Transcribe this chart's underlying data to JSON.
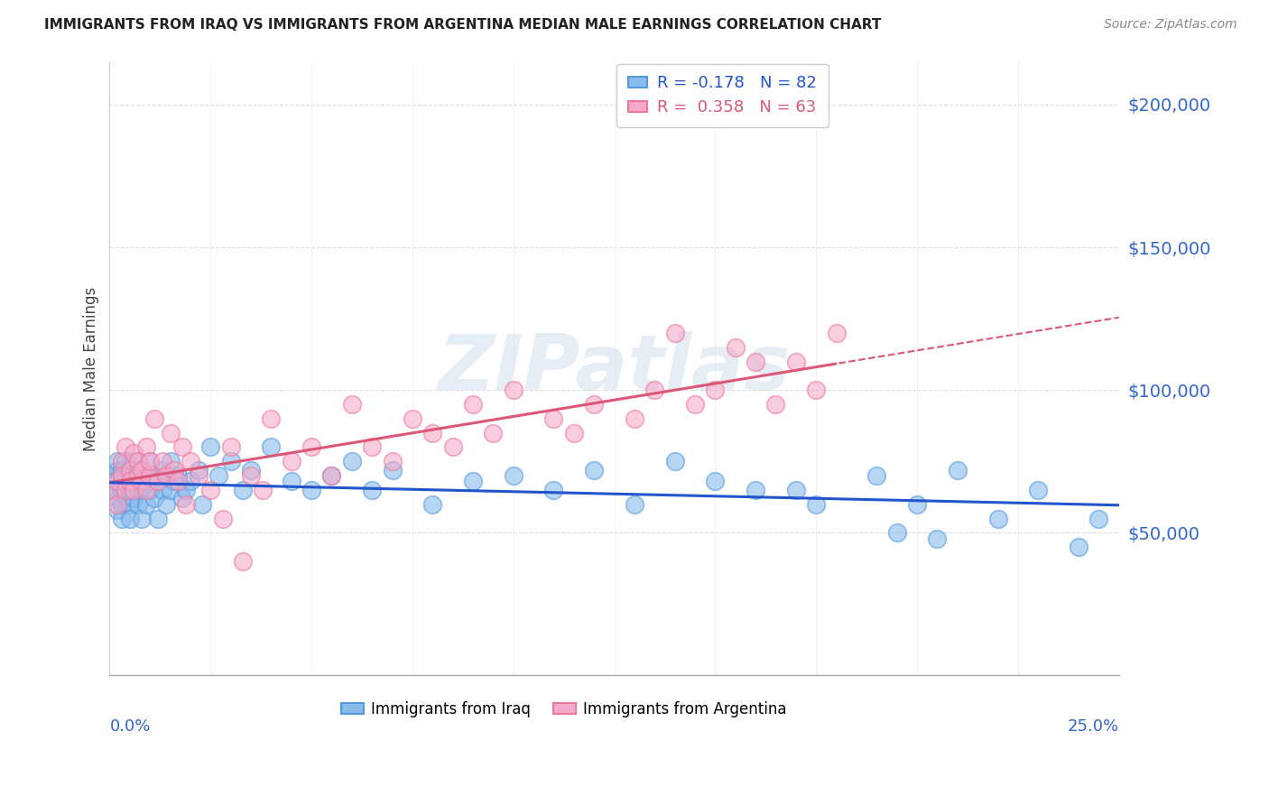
{
  "title": "IMMIGRANTS FROM IRAQ VS IMMIGRANTS FROM ARGENTINA MEDIAN MALE EARNINGS CORRELATION CHART",
  "source": "Source: ZipAtlas.com",
  "ylabel": "Median Male Earnings",
  "yticks": [
    0,
    50000,
    100000,
    150000,
    200000
  ],
  "ytick_labels": [
    "",
    "$50,000",
    "$100,000",
    "$150,000",
    "$200,000"
  ],
  "xmin": 0.0,
  "xmax": 0.25,
  "ymin": 20000,
  "ymax": 215000,
  "iraq_dot_color": "#88bbee",
  "iraq_dot_edge": "#5599dd",
  "argentina_dot_color": "#f5aacc",
  "argentina_dot_edge": "#ee7799",
  "iraq_line_color": "#2255cc",
  "argentina_line_color": "#dd5577",
  "axis_color": "#3366cc",
  "grid_color": "#dddddd",
  "legend_iraq_label": "R = -0.178   N = 82",
  "legend_arg_label": "R =  0.358   N = 63",
  "bottom_legend_iraq": "Immigrants from Iraq",
  "bottom_legend_arg": "Immigrants from Argentina",
  "watermark": "ZIPatlas",
  "iraq_scatter_x": [
    0.001,
    0.001,
    0.001,
    0.002,
    0.002,
    0.002,
    0.002,
    0.002,
    0.003,
    0.003,
    0.003,
    0.003,
    0.003,
    0.004,
    0.004,
    0.004,
    0.004,
    0.005,
    0.005,
    0.005,
    0.005,
    0.006,
    0.006,
    0.006,
    0.007,
    0.007,
    0.007,
    0.008,
    0.008,
    0.008,
    0.009,
    0.009,
    0.01,
    0.01,
    0.011,
    0.011,
    0.012,
    0.012,
    0.013,
    0.013,
    0.014,
    0.015,
    0.015,
    0.016,
    0.017,
    0.018,
    0.019,
    0.02,
    0.022,
    0.023,
    0.025,
    0.027,
    0.03,
    0.033,
    0.035,
    0.04,
    0.045,
    0.05,
    0.055,
    0.06,
    0.065,
    0.07,
    0.08,
    0.09,
    0.1,
    0.11,
    0.12,
    0.13,
    0.14,
    0.15,
    0.17,
    0.19,
    0.2,
    0.21,
    0.22,
    0.23,
    0.24,
    0.245,
    0.16,
    0.175,
    0.195,
    0.205
  ],
  "iraq_scatter_y": [
    70000,
    65000,
    68000,
    62000,
    72000,
    65000,
    58000,
    75000,
    60000,
    68000,
    72000,
    65000,
    55000,
    70000,
    75000,
    63000,
    68000,
    65000,
    60000,
    72000,
    55000,
    68000,
    75000,
    62000,
    65000,
    70000,
    60000,
    72000,
    65000,
    55000,
    68000,
    60000,
    75000,
    65000,
    70000,
    62000,
    68000,
    55000,
    72000,
    65000,
    60000,
    75000,
    65000,
    68000,
    70000,
    62000,
    65000,
    68000,
    72000,
    60000,
    80000,
    70000,
    75000,
    65000,
    72000,
    80000,
    68000,
    65000,
    70000,
    75000,
    65000,
    72000,
    60000,
    68000,
    70000,
    65000,
    72000,
    60000,
    75000,
    68000,
    65000,
    70000,
    60000,
    72000,
    55000,
    65000,
    45000,
    55000,
    65000,
    60000,
    50000,
    48000
  ],
  "argentina_scatter_x": [
    0.001,
    0.002,
    0.002,
    0.003,
    0.003,
    0.004,
    0.004,
    0.005,
    0.005,
    0.006,
    0.006,
    0.007,
    0.007,
    0.008,
    0.008,
    0.009,
    0.009,
    0.01,
    0.01,
    0.011,
    0.012,
    0.013,
    0.014,
    0.015,
    0.016,
    0.017,
    0.018,
    0.019,
    0.02,
    0.022,
    0.025,
    0.028,
    0.03,
    0.033,
    0.035,
    0.038,
    0.04,
    0.045,
    0.05,
    0.055,
    0.06,
    0.065,
    0.07,
    0.075,
    0.08,
    0.085,
    0.09,
    0.095,
    0.1,
    0.11,
    0.115,
    0.12,
    0.13,
    0.135,
    0.14,
    0.145,
    0.15,
    0.155,
    0.16,
    0.165,
    0.17,
    0.175,
    0.18
  ],
  "argentina_scatter_y": [
    65000,
    68000,
    60000,
    75000,
    70000,
    65000,
    80000,
    72000,
    68000,
    78000,
    65000,
    70000,
    75000,
    68000,
    72000,
    65000,
    80000,
    70000,
    75000,
    90000,
    68000,
    75000,
    70000,
    85000,
    72000,
    68000,
    80000,
    60000,
    75000,
    70000,
    65000,
    55000,
    80000,
    40000,
    70000,
    65000,
    90000,
    75000,
    80000,
    70000,
    95000,
    80000,
    75000,
    90000,
    85000,
    80000,
    95000,
    85000,
    100000,
    90000,
    85000,
    95000,
    90000,
    100000,
    120000,
    95000,
    100000,
    115000,
    110000,
    95000,
    110000,
    100000,
    120000
  ]
}
